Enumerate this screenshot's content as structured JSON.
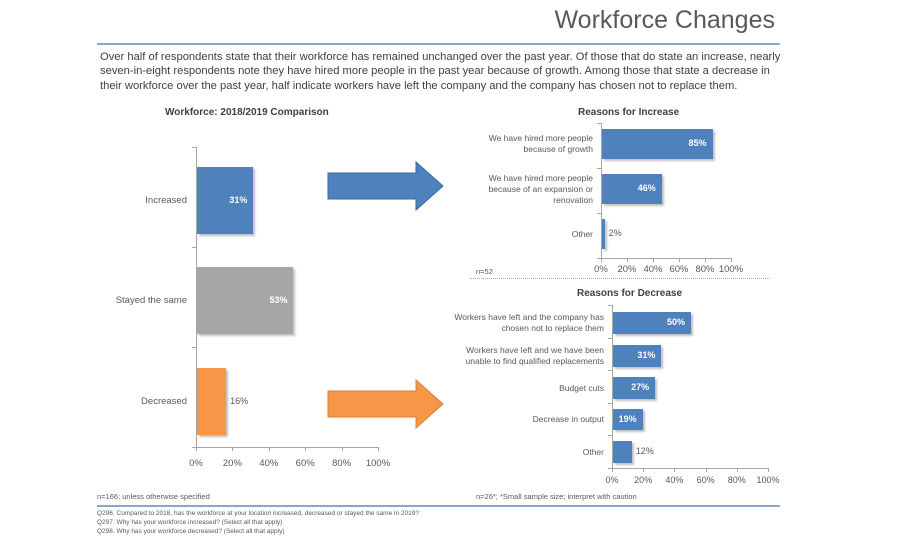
{
  "header": {
    "title": "Workforce Changes"
  },
  "intro": "Over half of respondents state that their workforce has remained unchanged over the past year. Of those that do state an increase, nearly seven-in-eight respondents note they have hired more people in the past year because of growth. Among those that state a decrease in their workforce over the past year, half indicate workers have left the company and the company has chosen not to replace them.",
  "chart_data": [
    {
      "type": "bar",
      "orientation": "horizontal",
      "title": "Workforce: 2018/2019 Comparison",
      "categories": [
        "Increased",
        "Stayed the same",
        "Decreased"
      ],
      "values": [
        31,
        53,
        16
      ],
      "value_labels": [
        "31%",
        "53%",
        "16%"
      ],
      "colors": [
        "#4f81bd",
        "#a6a6a6",
        "#f79646"
      ],
      "xlim": [
        0,
        100
      ],
      "xticks": [
        "0%",
        "20%",
        "40%",
        "60%",
        "80%",
        "100%"
      ],
      "grid": false
    },
    {
      "type": "bar",
      "orientation": "horizontal",
      "title": "Reasons for Increase",
      "categories": [
        "We have hired more people because of growth",
        "We have hired more people because of an expansion or renovation",
        "Other"
      ],
      "values": [
        85,
        46,
        2
      ],
      "value_labels": [
        "85%",
        "46%",
        "2%"
      ],
      "colors": [
        "#4f81bd"
      ],
      "xlim": [
        0,
        100
      ],
      "xticks": [
        "0%",
        "20%",
        "40%",
        "60%",
        "80%",
        "100%"
      ],
      "grid": false,
      "note": "n=52"
    },
    {
      "type": "bar",
      "orientation": "horizontal",
      "title": "Reasons for Decrease",
      "categories": [
        "Workers have left and the company has chosen not to replace them",
        "Workers have left and we have been unable to find qualified replacements",
        "Budget cuts",
        "Decrease in output",
        "Other"
      ],
      "values": [
        50,
        31,
        27,
        19,
        12
      ],
      "value_labels": [
        "50%",
        "31%",
        "27%",
        "19%",
        "12%"
      ],
      "colors": [
        "#4f81bd"
      ],
      "xlim": [
        0,
        100
      ],
      "xticks": [
        "0%",
        "20%",
        "40%",
        "60%",
        "80%",
        "100%"
      ],
      "grid": false,
      "note": "n=26*; *Small sample size; interpret with caution"
    }
  ],
  "arrows": {
    "increase_color": "#4f81bd",
    "decrease_color": "#f79646"
  },
  "footer": {
    "note": "n=166; unless otherwise specified",
    "questions": [
      "Q296. Compared to 2018, has the workforce at your location increased, decreased or stayed the same in 2019?",
      "Q297. Why has your workforce increased? (Select all that apply)",
      "Q298. Why has your workforce decreased? (Select all that apply)"
    ]
  }
}
